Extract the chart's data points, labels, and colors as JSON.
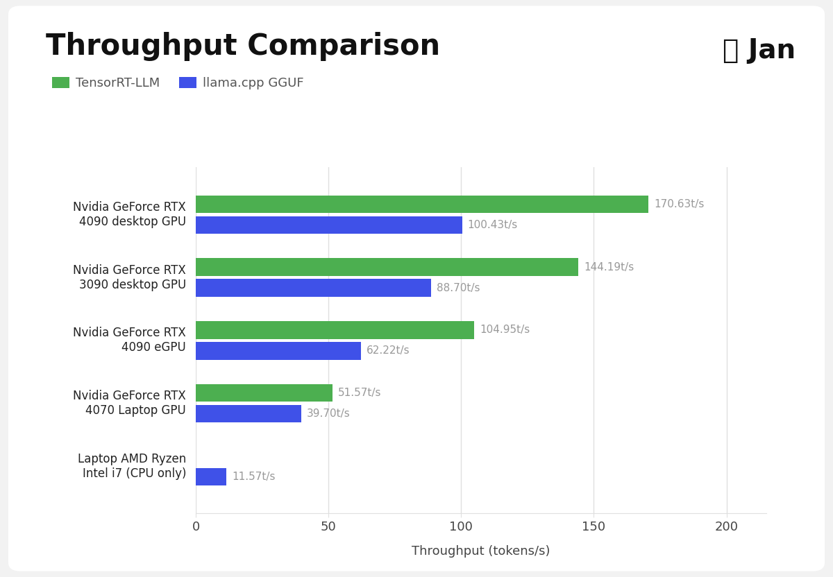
{
  "title": "Throughput Comparison",
  "brand_text": "Jan",
  "brand_emoji": "👋",
  "xlabel": "Throughput (tokens/s)",
  "legend_labels": [
    "TensorRT-LLM",
    "llama.cpp GGUF"
  ],
  "legend_colors": [
    "#4caf50",
    "#3f51e8"
  ],
  "categories": [
    "Nvidia GeForce RTX\n4090 desktop GPU",
    "Nvidia GeForce RTX\n3090 desktop GPU",
    "Nvidia GeForce RTX\n4090 eGPU",
    "Nvidia GeForce RTX\n4070 Laptop GPU",
    "Laptop AMD Ryzen\nIntel i7 (CPU only)"
  ],
  "tensorrt_values": [
    170.63,
    144.19,
    104.95,
    51.57,
    null
  ],
  "llamacpp_values": [
    100.43,
    88.7,
    62.22,
    39.7,
    11.57
  ],
  "tensorrt_labels": [
    "170.63t/s",
    "144.19t/s",
    "104.95t/s",
    "51.57t/s",
    null
  ],
  "llamacpp_labels": [
    "100.43t/s",
    "88.70t/s",
    "62.22t/s",
    "39.70t/s",
    "11.57t/s"
  ],
  "xlim": [
    0,
    215
  ],
  "xticks": [
    0,
    50,
    100,
    150,
    200
  ],
  "bar_height": 0.28,
  "bar_gap": 0.05,
  "background_color": "#f2f2f2",
  "card_color": "#ffffff",
  "grid_color": "#e0e0e0",
  "label_color": "#999999",
  "title_fontsize": 30,
  "axis_label_fontsize": 13,
  "tick_fontsize": 13,
  "legend_fontsize": 13,
  "bar_label_fontsize": 11,
  "category_fontsize": 12
}
